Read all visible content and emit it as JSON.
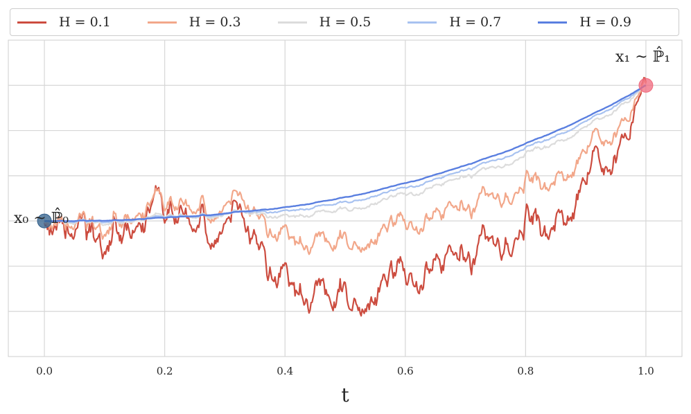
{
  "chart_data": {
    "type": "line",
    "xlabel": "t",
    "ylabel": "",
    "xlim": [
      -0.06,
      1.06
    ],
    "xticks": [
      "0.0",
      "0.2",
      "0.4",
      "0.6",
      "0.8",
      "1.0"
    ],
    "xtick_values": [
      0.0,
      0.2,
      0.4,
      0.6,
      0.8,
      1.0
    ],
    "grid": true,
    "legend_position": "top",
    "start_point": {
      "label": "x₀ ~ ℙ̂₀",
      "t": 0.0,
      "color": "#2f5d8a"
    },
    "end_point": {
      "label": "x₁ ~ ℙ̂₁",
      "t": 1.0,
      "color": "#f06a7d"
    },
    "series": [
      {
        "name": "H = 0.1",
        "color": "#cc4c3f"
      },
      {
        "name": "H = 0.3",
        "color": "#f2a78a"
      },
      {
        "name": "H = 0.5",
        "color": "#dcdcdc"
      },
      {
        "name": "H = 0.7",
        "color": "#a8c2f0"
      },
      {
        "name": "H = 0.9",
        "color": "#5a7fe0"
      }
    ]
  }
}
